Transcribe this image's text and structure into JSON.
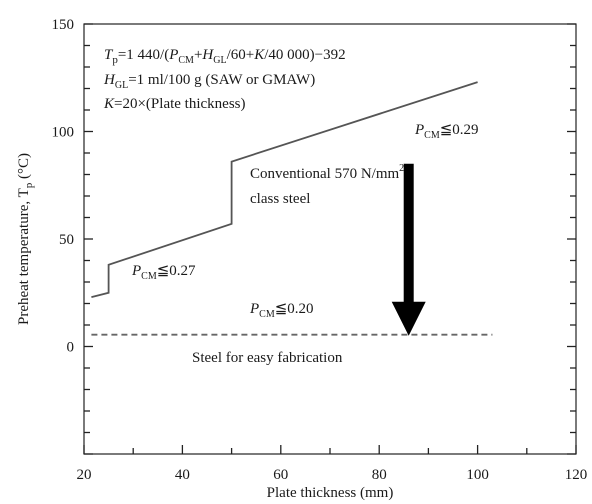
{
  "chart_data": {
    "type": "line",
    "xlabel": "Plate thickness (mm)",
    "ylabel": "Preheat temperature, T",
    "ylabel_sub": "p",
    "ylabel_unit": " (°C)",
    "xlim": [
      20,
      120
    ],
    "ylim": [
      -50,
      150
    ],
    "x_ticks": [
      "20",
      "40",
      "60",
      "80",
      "100",
      "120"
    ],
    "y_ticks": [
      "0",
      "50",
      "100",
      "150"
    ],
    "grid": false,
    "series": [
      {
        "points": [
          [
            21.5,
            23
          ],
          [
            25,
            25
          ],
          [
            25,
            38
          ],
          [
            50,
            57
          ],
          [
            50,
            86
          ],
          [
            100,
            123
          ]
        ]
      },
      {
        "style": "dashed",
        "points": [
          [
            21.5,
            5.5
          ],
          [
            103,
            5.5
          ]
        ]
      }
    ],
    "annotations": {
      "formula": {
        "tp": "T",
        "tp_sub": "p",
        "eq1": "=1 440/(",
        "pcm": "P",
        "pcm_sub": "CM",
        "plus1": "+",
        "hgl": "H",
        "hgl_sub": "GL",
        "div60": "/60+",
        "k": "K",
        "tail": "/40 000)−392"
      },
      "hgl_line": {
        "h": "H",
        "h_sub": "GL",
        "rest": "=1 ml/100 g (SAW or GMAW)"
      },
      "k_line": {
        "k": "K",
        "rest": "=20×(Plate thickness)"
      },
      "pcm_029": {
        "p": "P",
        "sub": "CM",
        "rest": "≦0.29"
      },
      "pcm_027": {
        "p": "P",
        "sub": "CM",
        "rest": "≦0.27"
      },
      "pcm_020": {
        "p": "P",
        "sub": "CM",
        "rest": "≦0.20"
      },
      "conventional_1": "Conventional 570 N/mm",
      "conventional_sup": "2",
      "conventional_2": "class steel",
      "easy": "Steel for easy fabrication"
    },
    "arrow": {
      "x": 86,
      "y_from": 85,
      "y_to": 5
    }
  }
}
